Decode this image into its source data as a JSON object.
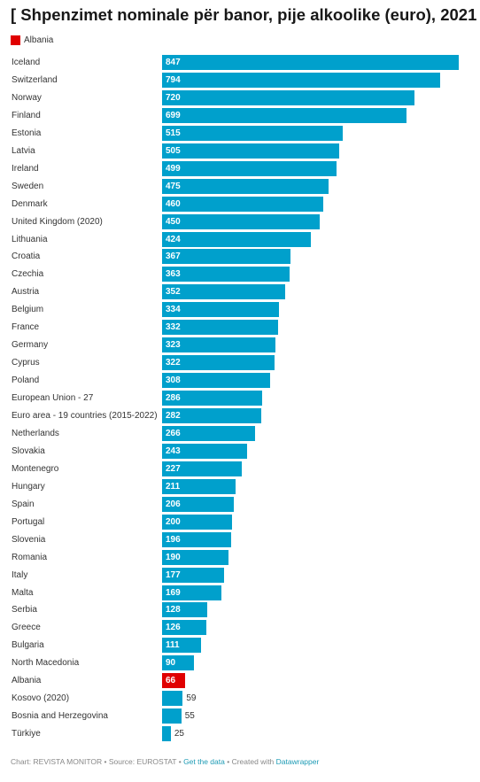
{
  "chart_data": {
    "type": "bar",
    "orientation": "horizontal",
    "title": "[ Shpenzimet nominale për banor, pije alkoolike (euro), 2021 ]",
    "legend": [
      {
        "label": "Albania",
        "color": "#e00000"
      }
    ],
    "xlim": [
      0,
      847
    ],
    "grid": false,
    "categories": [
      "Iceland",
      "Switzerland",
      "Norway",
      "Finland",
      "Estonia",
      "Latvia",
      "Ireland",
      "Sweden",
      "Denmark",
      "United Kingdom (2020)",
      "Lithuania",
      "Croatia",
      "Czechia",
      "Austria",
      "Belgium",
      "France",
      "Germany",
      "Cyprus",
      "Poland",
      "European Union - 27",
      "Euro area - 19 countries (2015-2022)",
      "Netherlands",
      "Slovakia",
      "Montenegro",
      "Hungary",
      "Spain",
      "Portugal",
      "Slovenia",
      "Romania",
      "Italy",
      "Malta",
      "Serbia",
      "Greece",
      "Bulgaria",
      "North Macedonia",
      "Albania",
      "Kosovo (2020)",
      "Bosnia and Herzegovina",
      "Türkiye"
    ],
    "values": [
      847,
      794,
      720,
      699,
      515,
      505,
      499,
      475,
      460,
      450,
      424,
      367,
      363,
      352,
      334,
      332,
      323,
      322,
      308,
      286,
      282,
      266,
      243,
      227,
      211,
      206,
      200,
      196,
      190,
      177,
      169,
      128,
      126,
      111,
      90,
      66,
      59,
      55,
      25
    ],
    "bar_color": "#00a0cc",
    "highlight": {
      "category": "Albania",
      "color": "#e00000"
    }
  },
  "footer": {
    "chart_by": "Chart: REVISTA MONITOR",
    "source": "Source: EUROSTAT",
    "get_data": "Get the data",
    "created_with": "Created with",
    "tool": "Datawrapper",
    "separator": " • "
  },
  "colors": {
    "text": "#333333",
    "footer_text": "#888888",
    "link": "#1d9bb5"
  }
}
